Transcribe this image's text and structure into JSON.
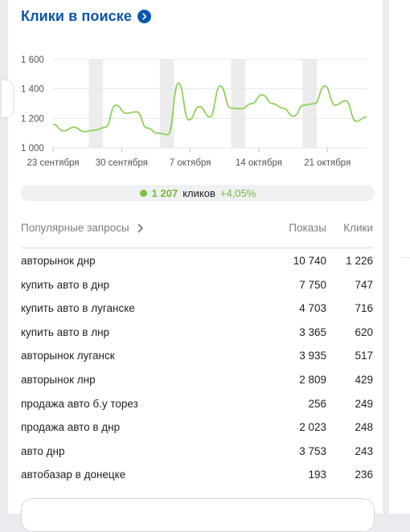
{
  "widget": {
    "title": "Клики в поиске"
  },
  "summary": {
    "value": "1 207",
    "unit": "кликов",
    "change": "+4,05%"
  },
  "table": {
    "header_queries": "Популярные запросы",
    "header_shows": "Показы",
    "header_clicks": "Клики",
    "rows": [
      {
        "query": "авторынок днр",
        "shows": "10 740",
        "clicks": "1 226"
      },
      {
        "query": "купить авто в днр",
        "shows": "7 750",
        "clicks": "747"
      },
      {
        "query": "купить авто в луганске",
        "shows": "4 703",
        "clicks": "716"
      },
      {
        "query": "купить авто в лнр",
        "shows": "3 365",
        "clicks": "620"
      },
      {
        "query": "авторынок луганск",
        "shows": "3 935",
        "clicks": "517"
      },
      {
        "query": "авторынок лнр",
        "shows": "2 809",
        "clicks": "429"
      },
      {
        "query": "продажа авто б.у торез",
        "shows": "256",
        "clicks": "249"
      },
      {
        "query": "продажа авто в днр",
        "shows": "2 023",
        "clicks": "248"
      },
      {
        "query": "авто днр",
        "shows": "3 753",
        "clicks": "243"
      },
      {
        "query": "автобазар в донецке",
        "shows": "193",
        "clicks": "236"
      }
    ]
  },
  "colors": {
    "title": "#0b57a8",
    "line": "#8fd15a",
    "accent_green": "#79b93d",
    "weekend_band": "#ececec"
  },
  "chart_data": {
    "type": "line",
    "ylim": [
      1000,
      1600
    ],
    "yticks": [
      "1 600",
      "1 400",
      "1 200",
      "1 000"
    ],
    "ytick_values": [
      1600,
      1400,
      1200,
      1000
    ],
    "xtick_labels": [
      "23 сентября",
      "30 сентября",
      "7 октября",
      "14 октября",
      "21 октября"
    ],
    "xtick_index": [
      0,
      7,
      14,
      21,
      28
    ],
    "weekend_bands": [
      [
        5,
        7
      ],
      [
        15,
        17
      ],
      [
        25,
        27
      ],
      [
        35,
        37
      ]
    ],
    "grid": true,
    "points": [
      1160,
      1115,
      1140,
      1110,
      1120,
      1140,
      1290,
      1235,
      1245,
      1135,
      1100,
      1090,
      1440,
      1190,
      1280,
      1210,
      1420,
      1270,
      1265,
      1300,
      1360,
      1300,
      1270,
      1215,
      1290,
      1300,
      1420,
      1290,
      1320,
      1180,
      1210
    ]
  }
}
